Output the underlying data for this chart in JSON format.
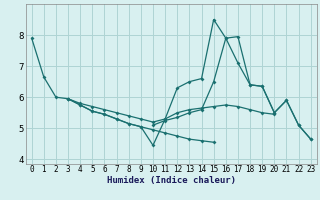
{
  "xlabel": "Humidex (Indice chaleur)",
  "bg_color": "#d8f0f0",
  "grid_color": "#aed4d4",
  "line_color": "#1a7070",
  "xlim": [
    -0.5,
    23.5
  ],
  "ylim": [
    3.85,
    9.0
  ],
  "xticks": [
    0,
    1,
    2,
    3,
    4,
    5,
    6,
    7,
    8,
    9,
    10,
    11,
    12,
    13,
    14,
    15,
    16,
    17,
    18,
    19,
    20,
    21,
    22,
    23
  ],
  "yticks": [
    4,
    5,
    6,
    7,
    8
  ],
  "series": [
    [
      0,
      7.9
    ],
    [
      1,
      6.65
    ],
    [
      2,
      6.0
    ],
    [
      3,
      5.95
    ],
    [
      4,
      5.75
    ],
    [
      5,
      5.55
    ],
    [
      6,
      5.45
    ],
    [
      7,
      5.3
    ],
    [
      8,
      5.15
    ],
    [
      9,
      5.05
    ],
    [
      10,
      4.45
    ],
    [
      11,
      5.3
    ],
    [
      12,
      6.3
    ],
    [
      13,
      6.5
    ],
    [
      14,
      6.6
    ],
    [
      15,
      8.5
    ],
    [
      16,
      7.9
    ],
    [
      17,
      7.95
    ],
    [
      18,
      6.4
    ],
    [
      19,
      6.35
    ],
    [
      20,
      5.5
    ],
    [
      21,
      5.9
    ],
    [
      22,
      5.1
    ],
    [
      23,
      4.65
    ]
  ],
  "line2": [
    [
      3,
      5.95
    ],
    [
      4,
      5.75
    ],
    [
      5,
      5.55
    ],
    [
      6,
      5.45
    ],
    [
      7,
      5.3
    ],
    [
      8,
      5.15
    ],
    [
      9,
      5.05
    ],
    [
      10,
      4.95
    ],
    [
      11,
      4.85
    ],
    [
      12,
      4.75
    ],
    [
      13,
      4.65
    ],
    [
      14,
      4.6
    ],
    [
      15,
      4.55
    ]
  ],
  "line3": [
    [
      3,
      5.95
    ],
    [
      4,
      5.8
    ],
    [
      5,
      5.7
    ],
    [
      6,
      5.6
    ],
    [
      7,
      5.5
    ],
    [
      8,
      5.4
    ],
    [
      9,
      5.3
    ],
    [
      10,
      5.2
    ],
    [
      11,
      5.3
    ],
    [
      12,
      5.5
    ],
    [
      13,
      5.6
    ],
    [
      14,
      5.65
    ],
    [
      15,
      5.7
    ],
    [
      16,
      5.75
    ],
    [
      17,
      5.7
    ],
    [
      18,
      5.6
    ],
    [
      19,
      5.5
    ],
    [
      20,
      5.45
    ]
  ],
  "line4": [
    [
      10,
      5.1
    ],
    [
      11,
      5.25
    ],
    [
      12,
      5.35
    ],
    [
      13,
      5.5
    ],
    [
      14,
      5.6
    ],
    [
      15,
      6.5
    ],
    [
      16,
      7.9
    ],
    [
      17,
      7.1
    ],
    [
      18,
      6.4
    ],
    [
      19,
      6.35
    ],
    [
      20,
      5.5
    ],
    [
      21,
      5.9
    ],
    [
      22,
      5.1
    ],
    [
      23,
      4.65
    ]
  ]
}
